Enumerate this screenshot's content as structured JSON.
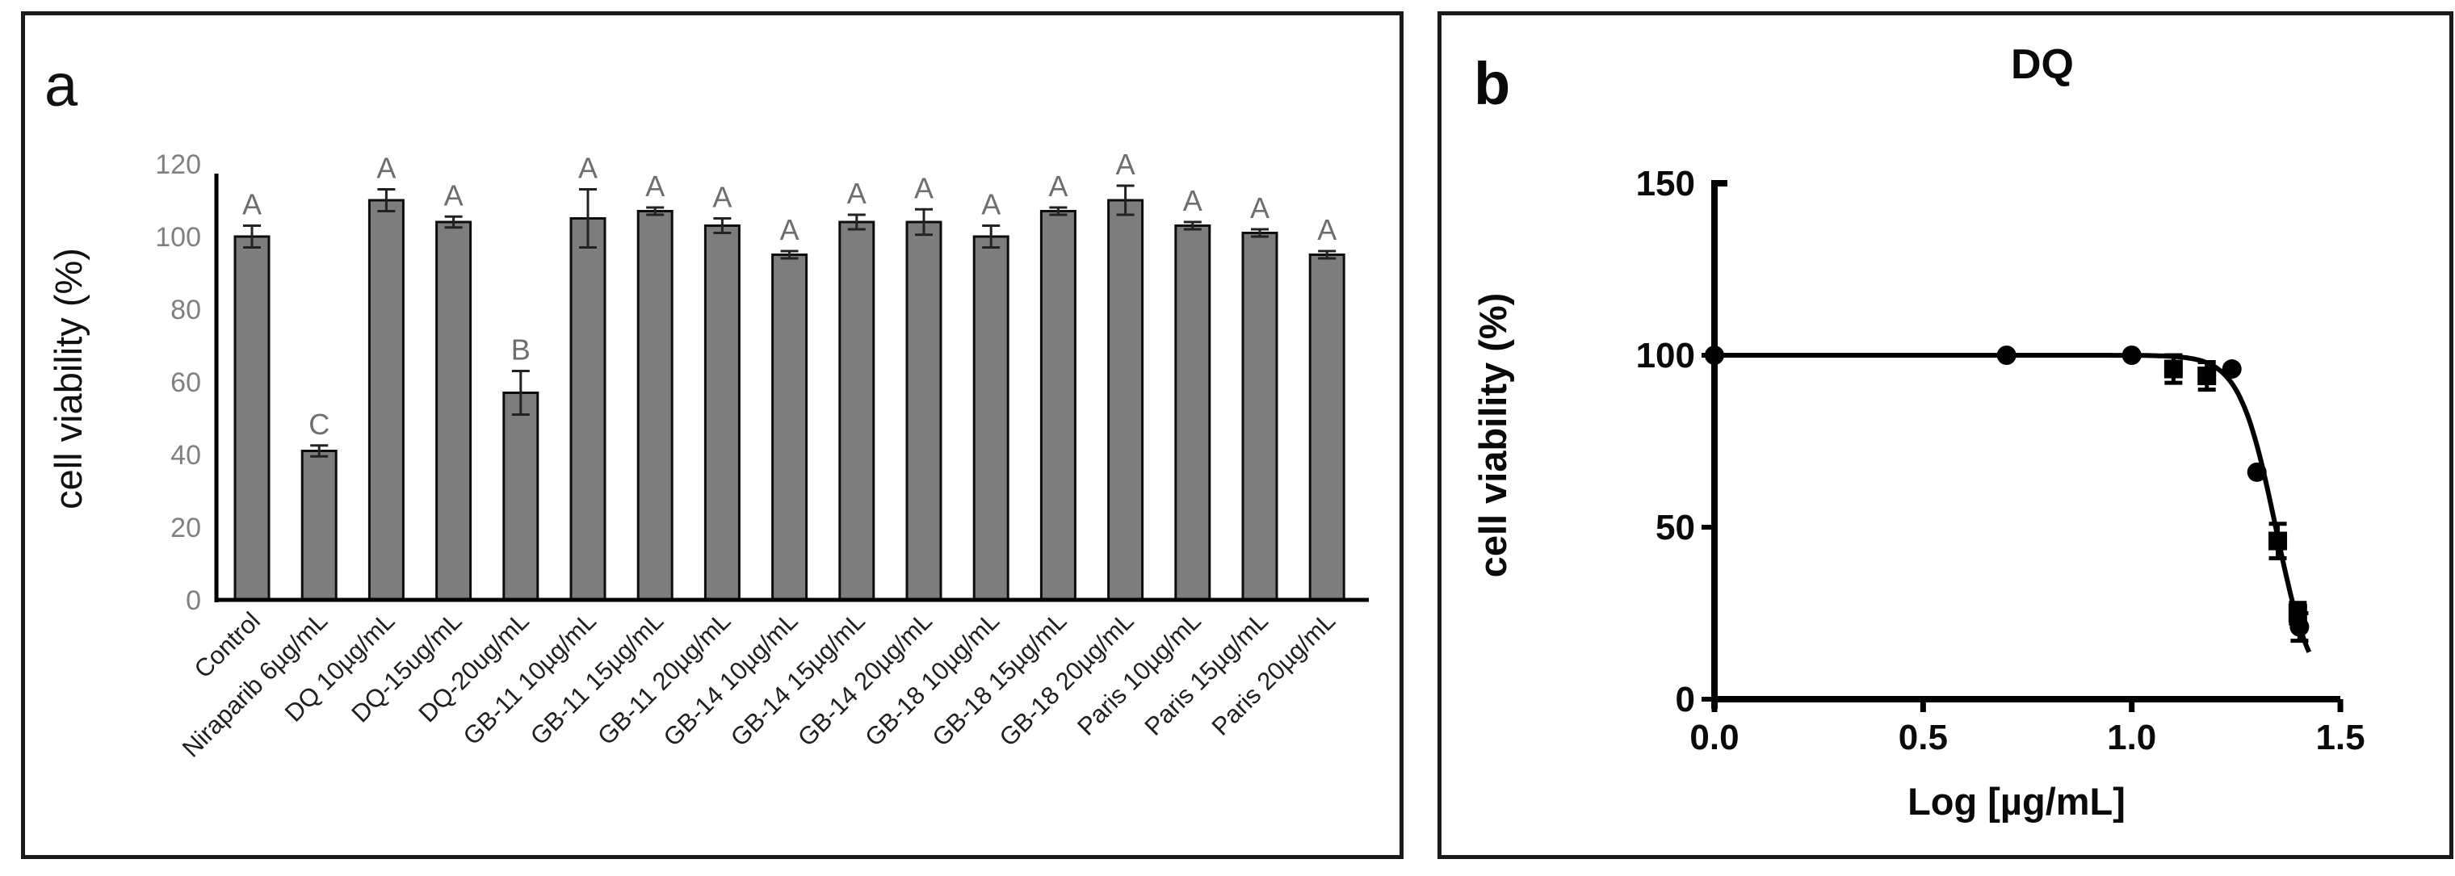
{
  "figure": {
    "background": "#ffffff",
    "border_color": "#1a1a1a"
  },
  "chart_data": [
    {
      "type": "bar",
      "panel_label": "a",
      "title": "",
      "xlabel": "",
      "ylabel": "cell viability (%)",
      "ylim": [
        0,
        120
      ],
      "yticks": [
        0,
        20,
        40,
        60,
        80,
        100,
        120
      ],
      "grid": false,
      "legend": false,
      "categories": [
        "Control",
        "Niraparib 6µg/mL",
        "DQ 10µg/mL",
        "DQ-15ug/mL",
        "DQ-20ug/mL",
        "GB-11 10µg/mL",
        "GB-11 15µg/mL",
        "GB-11 20µg/mL",
        "GB-14 10µg/mL",
        "GB-14 15µg/mL",
        "GB-14 20µg/mL",
        "GB-18 10µg/mL",
        "GB-18 15µg/mL",
        "GB-18 20µg/mL",
        "Paris 10µg/mL",
        "Paris 15µg/mL",
        "Paris 20µg/mL"
      ],
      "values": [
        100,
        41,
        110,
        104,
        57,
        105,
        107,
        103,
        95,
        104,
        104,
        100,
        107,
        110,
        103,
        101,
        95
      ],
      "errors": [
        3,
        1.5,
        3,
        1.5,
        6,
        8,
        1,
        2,
        1,
        2,
        3.5,
        3,
        1,
        4,
        1,
        1,
        1
      ],
      "sig_letters": [
        "A",
        "C",
        "A",
        "A",
        "B",
        "A",
        "A",
        "A",
        "A",
        "A",
        "A",
        "A",
        "A",
        "A",
        "A",
        "A",
        "A"
      ],
      "colors": {
        "bar_fill": "#7d7d7d",
        "bar_border": "#0d0d0d",
        "error_bar": "#222222",
        "sig_letter": "#6e6e6e",
        "tick_label": "#808080",
        "axis": "#000000",
        "axis_title": "#111111",
        "category_label": "#1f1f1f"
      }
    },
    {
      "type": "scatter",
      "panel_label": "b",
      "title": "DQ",
      "xlabel": "Log [µg/mL]",
      "ylabel": "cell viability (%)",
      "xlim": [
        0,
        1.5
      ],
      "ylim": [
        0,
        150
      ],
      "xticks": [
        "0.0",
        "0.5",
        "1.0",
        "1.5"
      ],
      "xtick_values": [
        0,
        0.5,
        1.0,
        1.5
      ],
      "yticks": [
        0,
        50,
        100,
        150
      ],
      "grid": false,
      "legend": false,
      "series": [
        {
          "name": "circle-points",
          "marker": "circle",
          "points": [
            [
              0.0,
              100
            ],
            [
              0.7,
              100
            ],
            [
              1.0,
              100
            ],
            [
              1.24,
              96
            ],
            [
              1.3,
              66
            ],
            [
              1.402,
              21
            ]
          ],
          "errors": [
            0,
            0,
            0,
            0,
            0,
            4
          ]
        },
        {
          "name": "square-points",
          "marker": "square",
          "points": [
            [
              1.1,
              96
            ],
            [
              1.18,
              94
            ],
            [
              1.35,
              46
            ],
            [
              1.398,
              25
            ]
          ],
          "errors": [
            4,
            4,
            5,
            3
          ]
        }
      ],
      "curve": {
        "model": "sigmoidal-dose-response",
        "top": 100,
        "bottom": 0,
        "log_ic50": 1.345,
        "hill_slope": 10,
        "x_range": [
          0,
          1.425
        ]
      },
      "colors": {
        "point": "#000000",
        "curve": "#000000",
        "axis": "#000000",
        "text": "#0a0a0a"
      }
    }
  ]
}
